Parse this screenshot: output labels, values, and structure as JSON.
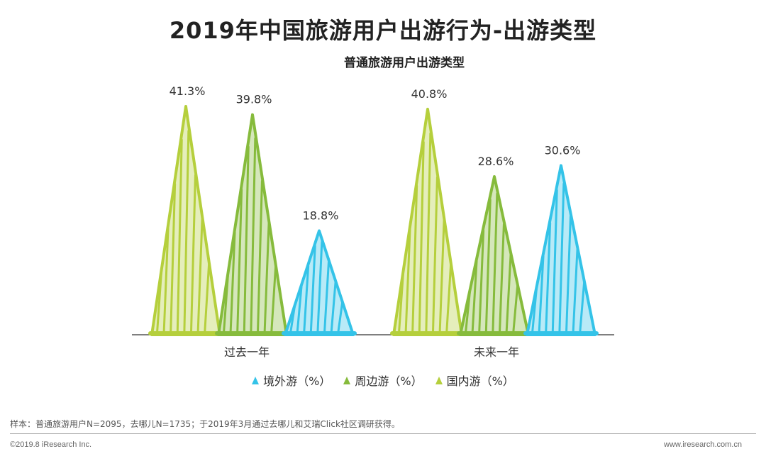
{
  "title": "2019年中国旅游用户出游行为-出游类型",
  "subtitle": "普通旅游用户出游类型",
  "colors": {
    "domestic": "#b5cf3c",
    "nearby": "#86bb3c",
    "outbound": "#34c3e8",
    "axis": "#555555"
  },
  "chart_data": {
    "type": "bar",
    "categories": [
      "过去一年",
      "未来一年"
    ],
    "ylim": [
      0,
      45
    ],
    "series": [
      {
        "name": "国内游（%）",
        "values": [
          41.3,
          40.8
        ],
        "labels": [
          "41.3%",
          "40.8%"
        ]
      },
      {
        "name": "周边游（%）",
        "values": [
          39.8,
          28.6
        ],
        "labels": [
          "39.8%",
          "28.6%"
        ]
      },
      {
        "name": "境外游（%）",
        "values": [
          18.8,
          30.6
        ],
        "labels": [
          "18.8%",
          "30.6%"
        ]
      }
    ],
    "legend_order": [
      "境外游（%）",
      "周边游（%）",
      "国内游（%）"
    ],
    "legend_position": "bottom"
  },
  "footnote": "样本：普通旅游用户N=2095，去哪儿N=1735；于2019年3月通过去哪儿和艾瑞Click社区调研获得。",
  "copyright": "©2019.8 iResearch Inc.",
  "website": "www.iresearch.com.cn"
}
